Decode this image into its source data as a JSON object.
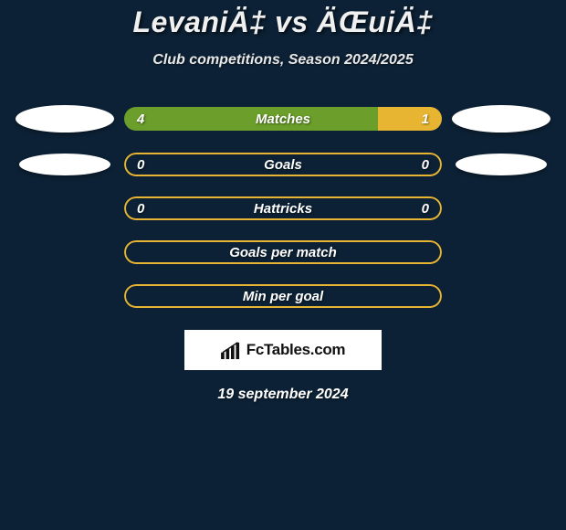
{
  "header": {
    "title": "LevaniÄ‡ vs ÄŒuiÄ‡",
    "subtitle": "Club competitions, Season 2024/2025"
  },
  "colors": {
    "left_fill": "#6b9e2a",
    "right_fill": "#e7b531",
    "neutral_fill": "#0c2135",
    "bar_border": "#e7b531",
    "background": "#0c2135"
  },
  "bars": [
    {
      "id": "matches",
      "label": "Matches",
      "left": "4",
      "right": "1",
      "left_pct": 80,
      "right_pct": 20,
      "show_left_ellipse": "ell-lg",
      "show_right_ellipse": "ell-lg",
      "border_color": "transparent"
    },
    {
      "id": "goals",
      "label": "Goals",
      "left": "0",
      "right": "0",
      "left_pct": 0,
      "right_pct": 0,
      "show_left_ellipse": "ell-md",
      "show_right_ellipse": "ell-md",
      "border_color": "#e7b531"
    },
    {
      "id": "hattricks",
      "label": "Hattricks",
      "left": "0",
      "right": "0",
      "left_pct": 0,
      "right_pct": 0,
      "border_color": "#e7b531"
    },
    {
      "id": "goals-per-match",
      "label": "Goals per match",
      "border_color": "#e7b531"
    },
    {
      "id": "min-per-goal",
      "label": "Min per goal",
      "border_color": "#e7b531"
    }
  ],
  "footer": {
    "logo_text": "FcTables.com",
    "date": "19 september 2024"
  }
}
